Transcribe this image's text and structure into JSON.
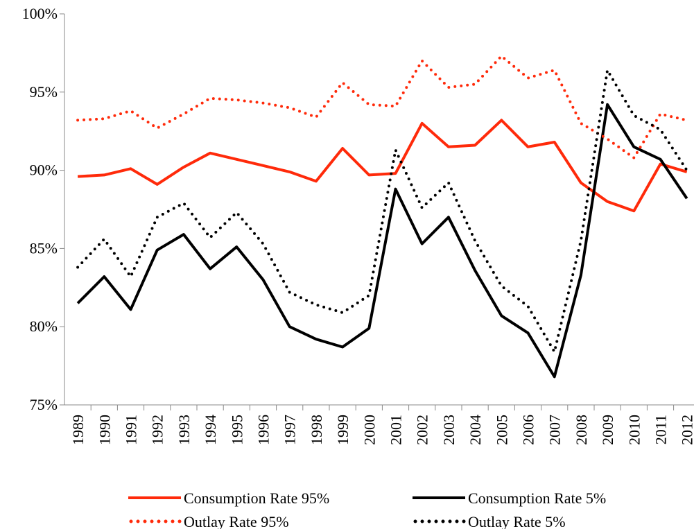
{
  "chart_data": {
    "type": "line",
    "categories": [
      "1989",
      "1990",
      "1991",
      "1992",
      "1993",
      "1994",
      "1995",
      "1996",
      "1997",
      "1998",
      "1999",
      "2000",
      "2001",
      "2002",
      "2003",
      "2004",
      "2005",
      "2006",
      "2007",
      "2008",
      "2009",
      "2010",
      "2011",
      "2012"
    ],
    "series": [
      {
        "name": "Consumption Rate 95%",
        "color": "#ff2a0a",
        "dash": "solid",
        "values": [
          89.6,
          89.7,
          90.1,
          89.1,
          90.2,
          91.1,
          90.7,
          90.3,
          89.9,
          89.3,
          91.4,
          89.7,
          89.8,
          93.0,
          91.5,
          91.6,
          93.2,
          91.5,
          91.8,
          89.2,
          88.0,
          87.4,
          90.4,
          89.9
        ]
      },
      {
        "name": "Consumption Rate 5%",
        "color": "#000000",
        "dash": "solid",
        "values": [
          81.5,
          83.2,
          81.1,
          84.9,
          85.9,
          83.7,
          85.1,
          83.0,
          80.0,
          79.2,
          78.7,
          79.9,
          88.8,
          85.3,
          87.0,
          83.6,
          80.7,
          79.6,
          76.8,
          83.3,
          94.2,
          91.5,
          90.7,
          88.2
        ]
      },
      {
        "name": "Outlay Rate 95%",
        "color": "#ff2a0a",
        "dash": "dotted",
        "values": [
          93.2,
          93.3,
          93.8,
          92.7,
          93.6,
          94.6,
          94.5,
          94.3,
          94.0,
          93.4,
          95.6,
          94.2,
          94.1,
          97.0,
          95.3,
          95.5,
          97.3,
          95.9,
          96.4,
          93.0,
          92.0,
          90.8,
          93.6,
          93.2
        ]
      },
      {
        "name": "Outlay Rate 5%",
        "color": "#000000",
        "dash": "dotted",
        "values": [
          83.8,
          85.6,
          83.2,
          87.0,
          87.9,
          85.7,
          87.3,
          85.3,
          82.2,
          81.4,
          80.9,
          82.0,
          91.3,
          87.6,
          89.2,
          85.5,
          82.6,
          81.3,
          78.4,
          85.5,
          96.4,
          93.5,
          92.6,
          90.0
        ]
      }
    ],
    "ylim": [
      75,
      100
    ],
    "yticks": [
      {
        "value": 75,
        "label": "75%"
      },
      {
        "value": 80,
        "label": "80%"
      },
      {
        "value": 85,
        "label": "85%"
      },
      {
        "value": 90,
        "label": "90%"
      },
      {
        "value": 95,
        "label": "95%"
      },
      {
        "value": 100,
        "label": "100%"
      }
    ],
    "grid": false,
    "legend": "bottom"
  }
}
